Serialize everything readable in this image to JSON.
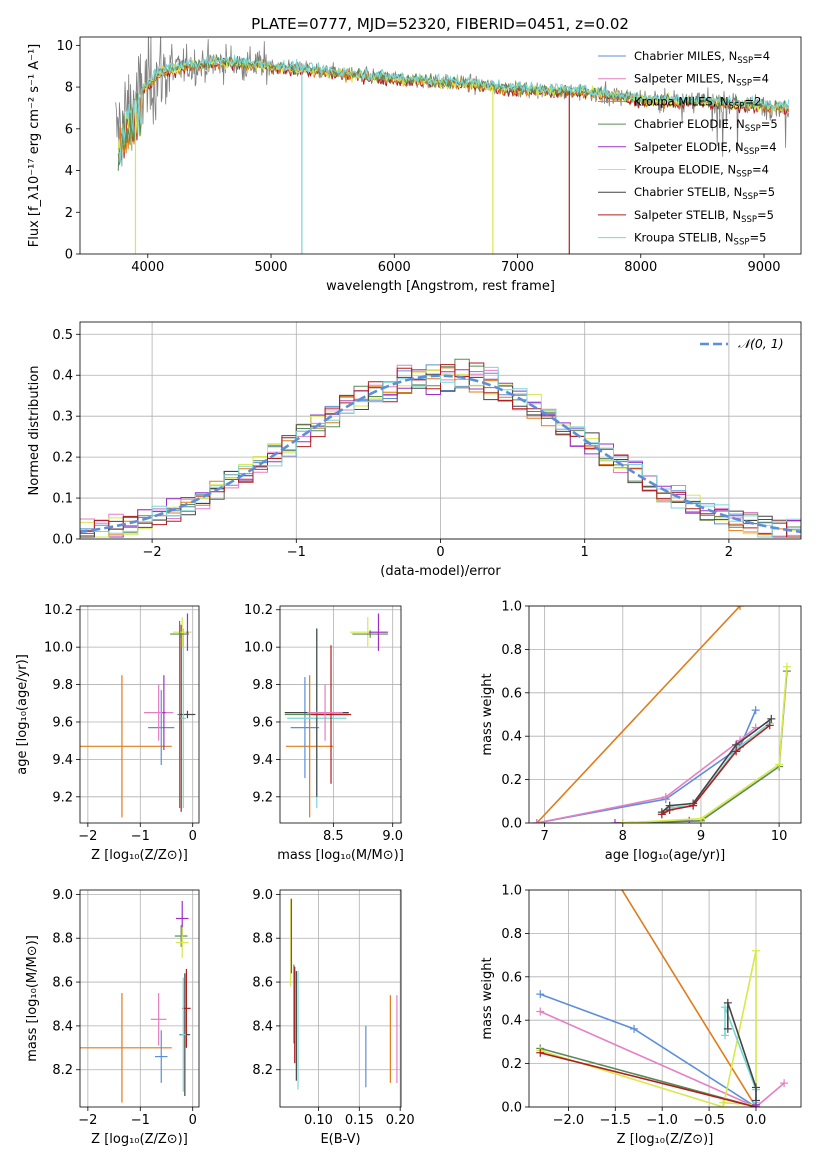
{
  "title": "PLATE=0777, MJD=52320, FIBERID=0451, z=0.02",
  "colors": {
    "Chabrier MILES": "#5b8fd9",
    "Salpeter MILES": "#e57fc4",
    "Kroupa MILES": "#e07b1a",
    "Chabrier ELODIE": "#5a8a5a",
    "Salpeter ELODIE": "#9b30c9",
    "Kroupa ELODIE": "#d7e84a",
    "Chabrier STELIB": "#444444",
    "Salpeter STELIB": "#b01e1e",
    "Kroupa STELIB": "#79d6d6"
  },
  "legend_spectrum": [
    {
      "name": "Chabrier MILES",
      "nssp": "4"
    },
    {
      "name": "Salpeter MILES",
      "nssp": "4"
    },
    {
      "name": "Kroupa MILES",
      "nssp": "2"
    },
    {
      "name": "Chabrier ELODIE",
      "nssp": "5"
    },
    {
      "name": "Salpeter ELODIE",
      "nssp": "4"
    },
    {
      "name": "Kroupa ELODIE",
      "nssp": "4"
    },
    {
      "name": "Chabrier STELIB",
      "nssp": "5"
    },
    {
      "name": "Salpeter STELIB",
      "nssp": "5"
    },
    {
      "name": "Kroupa STELIB",
      "nssp": "5"
    }
  ],
  "legend_residual": "𝒩(0, 1)",
  "chart_data": [
    {
      "id": "spectrum",
      "type": "line",
      "xlabel": "wavelength [Angstrom, rest frame]",
      "ylabel": "Flux [f_λ10⁻¹⁷ erg cm⁻² s⁻¹ A⁻¹]",
      "xlim": [
        3450,
        9300
      ],
      "ylim": [
        0,
        10.4
      ],
      "xticks": [
        4000,
        5000,
        6000,
        7000,
        8000,
        9000
      ],
      "yticks": [
        0,
        2,
        4,
        6,
        8,
        10
      ],
      "data_range": [
        3740,
        9200
      ],
      "continuum": [
        [
          3740,
          5.8
        ],
        [
          3850,
          7.0
        ],
        [
          3950,
          7.8
        ],
        [
          4100,
          8.7
        ],
        [
          4300,
          9.0
        ],
        [
          4600,
          9.2
        ],
        [
          5000,
          9.0
        ],
        [
          5500,
          8.7
        ],
        [
          6000,
          8.4
        ],
        [
          6500,
          8.2
        ],
        [
          7000,
          7.9
        ],
        [
          7500,
          7.8
        ],
        [
          8000,
          7.4
        ],
        [
          8500,
          7.3
        ],
        [
          9000,
          7.1
        ],
        [
          9200,
          7.0
        ]
      ],
      "dropouts": [
        5250,
        6800,
        7420,
        3900
      ]
    },
    {
      "id": "residuals",
      "type": "histogram",
      "xlabel": "(data-model)/error",
      "ylabel": "Normed distribution",
      "xlim": [
        -2.5,
        2.5
      ],
      "ylim": [
        0,
        0.53
      ],
      "xticks": [
        -2,
        -1,
        0,
        1,
        2
      ],
      "yticks": [
        0.0,
        0.1,
        0.2,
        0.3,
        0.4,
        0.5
      ],
      "bin_width": 0.1
    },
    {
      "id": "age-vs-Z",
      "type": "errorbar",
      "xlabel": "Z [log₁₀(Z/Z⊙)]",
      "ylabel": "age  [log₁₀(age/yr)]",
      "xlim": [
        -2.15,
        0.12
      ],
      "ylim": [
        9.06,
        10.22
      ],
      "xticks": [
        -2,
        -1,
        0
      ],
      "yticks": [
        9.2,
        9.4,
        9.6,
        9.8,
        10.0,
        10.2
      ],
      "points": [
        {
          "s": "Kroupa MILES",
          "x": -1.35,
          "xe": 0.95,
          "y": 9.47,
          "ye": 0.38
        },
        {
          "s": "Chabrier MILES",
          "x": -0.6,
          "xe": 0.25,
          "y": 9.57,
          "ye": 0.2
        },
        {
          "s": "Salpeter MILES",
          "x": -0.65,
          "xe": 0.28,
          "y": 9.65,
          "ye": 0.15
        },
        {
          "s": "Salpeter ELODIE",
          "x": -0.55,
          "xe": 0.03,
          "y": 9.65,
          "ye": 0.2
        },
        {
          "s": "Chabrier ELODIE",
          "x": -0.25,
          "xe": 0.04,
          "y": 9.64,
          "ye": 0.5
        },
        {
          "s": "Salpeter STELIB",
          "x": -0.22,
          "xe": 0.04,
          "y": 9.62,
          "ye": 0.5
        },
        {
          "s": "Chabrier STELIB",
          "x": -0.1,
          "xe": 0.15,
          "y": 9.64,
          "ye": 0.02
        },
        {
          "s": "Kroupa STELIB",
          "x": -0.18,
          "xe": 0.05,
          "y": 9.62,
          "ye": 0.48
        },
        {
          "s": "Kroupa ELODIE",
          "x": -0.2,
          "xe": 0.18,
          "y": 10.08,
          "ye": 0.08
        },
        {
          "s": "Chabrier ELODIE",
          "x": -0.25,
          "xe": 0.18,
          "y": 10.07,
          "ye": 0.02
        },
        {
          "s": "Salpeter ELODIE",
          "x": -0.1,
          "xe": 0.02,
          "y": 10.08,
          "ye": 0.1
        }
      ]
    },
    {
      "id": "age-vs-mass",
      "type": "errorbar",
      "xlabel": "mass [log₁₀(M/M⊙)]",
      "ylabel": "",
      "xlim": [
        8.05,
        9.07
      ],
      "ylim": [
        9.06,
        10.22
      ],
      "xticks": [
        8.5,
        9.0
      ],
      "yticks": [
        9.2,
        9.4,
        9.6,
        9.8,
        10.0,
        10.2
      ],
      "points": [
        {
          "s": "Kroupa MILES",
          "x": 8.3,
          "xe": 0.2,
          "y": 9.47,
          "ye": 0.38
        },
        {
          "s": "Chabrier MILES",
          "x": 8.26,
          "xe": 0.12,
          "y": 9.57,
          "ye": 0.27
        },
        {
          "s": "Kroupa STELIB",
          "x": 8.36,
          "xe": 0.25,
          "y": 9.62,
          "ye": 0.48
        },
        {
          "s": "Chabrier STELIB",
          "x": 8.36,
          "xe": 0.27,
          "y": 9.65,
          "ye": 0.45
        },
        {
          "s": "Chabrier ELODIE",
          "x": 8.36,
          "xe": 0.27,
          "y": 9.64,
          "ye": 0.02
        },
        {
          "s": "Salpeter STELIB",
          "x": 8.48,
          "xe": 0.17,
          "y": 9.64,
          "ye": 0.37
        },
        {
          "s": "Salpeter MILES",
          "x": 8.43,
          "xe": 0.15,
          "y": 9.65,
          "ye": 0.15
        },
        {
          "s": "Kroupa ELODIE",
          "x": 8.79,
          "xe": 0.15,
          "y": 10.08,
          "ye": 0.08
        },
        {
          "s": "Chabrier ELODIE",
          "x": 8.81,
          "xe": 0.15,
          "y": 10.07,
          "ye": 0.02
        },
        {
          "s": "Salpeter ELODIE",
          "x": 8.88,
          "xe": 0.08,
          "y": 10.08,
          "ye": 0.1
        }
      ]
    },
    {
      "id": "weight-vs-age",
      "type": "line",
      "xlabel": "age  [log₁₀(age/yr)]",
      "ylabel": "mass weight",
      "xlim": [
        6.8,
        10.28
      ],
      "ylim": [
        0,
        1.0
      ],
      "xticks": [
        7,
        8,
        9,
        10
      ],
      "yticks": [
        0.0,
        0.2,
        0.4,
        0.6,
        0.8,
        1.0
      ],
      "series": [
        {
          "s": "Kroupa MILES",
          "x": [
            6.9,
            9.5
          ],
          "y": [
            0.0,
            1.0
          ]
        },
        {
          "s": "Chabrier MILES",
          "x": [
            6.9,
            8.55,
            9.5,
            9.7
          ],
          "y": [
            0.0,
            0.11,
            0.35,
            0.52
          ]
        },
        {
          "s": "Salpeter MILES",
          "x": [
            6.9,
            8.55,
            9.5,
            9.7
          ],
          "y": [
            0.0,
            0.12,
            0.38,
            0.44
          ]
        },
        {
          "s": "Salpeter ELODIE",
          "x": [
            7.9,
            8.85
          ],
          "y": [
            0.0,
            0.01
          ]
        },
        {
          "s": "Kroupa STELIB",
          "x": [
            8.5,
            8.6,
            8.9,
            9.45,
            9.88
          ],
          "y": [
            0.04,
            0.07,
            0.08,
            0.34,
            0.46
          ]
        },
        {
          "s": "Chabrier STELIB",
          "x": [
            8.5,
            8.6,
            8.9,
            9.45,
            9.9
          ],
          "y": [
            0.05,
            0.08,
            0.09,
            0.36,
            0.48
          ]
        },
        {
          "s": "Salpeter STELIB",
          "x": [
            8.5,
            8.6,
            8.9,
            9.45,
            9.88
          ],
          "y": [
            0.04,
            0.06,
            0.08,
            0.33,
            0.45
          ]
        },
        {
          "s": "Chabrier ELODIE",
          "x": [
            8.0,
            9.0,
            10.0,
            10.1
          ],
          "y": [
            0.0,
            0.01,
            0.26,
            0.7
          ]
        },
        {
          "s": "Kroupa ELODIE",
          "x": [
            8.0,
            9.0,
            10.0,
            10.1
          ],
          "y": [
            0.0,
            0.02,
            0.27,
            0.72
          ]
        }
      ]
    },
    {
      "id": "mass-vs-Z",
      "type": "errorbar",
      "xlabel": "Z [log₁₀(Z/Z⊙)]",
      "ylabel": "mass [log₁₀(M/M⊙)]",
      "xlim": [
        -2.15,
        0.12
      ],
      "ylim": [
        8.03,
        9.02
      ],
      "xticks": [
        -2,
        -1,
        0
      ],
      "yticks": [
        8.2,
        8.4,
        8.6,
        8.8,
        9.0
      ],
      "points": [
        {
          "s": "Kroupa MILES",
          "x": -1.35,
          "xe": 0.95,
          "y": 8.3,
          "ye": 0.25
        },
        {
          "s": "Chabrier MILES",
          "x": -0.6,
          "xe": 0.12,
          "y": 8.26,
          "ye": 0.12
        },
        {
          "s": "Salpeter MILES",
          "x": -0.65,
          "xe": 0.15,
          "y": 8.43,
          "ye": 0.12
        },
        {
          "s": "Salpeter ELODIE",
          "x": -0.2,
          "xe": 0.12,
          "y": 8.89,
          "ye": 0.08
        },
        {
          "s": "Chabrier ELODIE",
          "x": -0.22,
          "xe": 0.12,
          "y": 8.81,
          "ye": 0.05
        },
        {
          "s": "Kroupa ELODIE",
          "x": -0.2,
          "xe": 0.12,
          "y": 8.78,
          "ye": 0.07
        },
        {
          "s": "Salpeter STELIB",
          "x": -0.12,
          "xe": 0.08,
          "y": 8.48,
          "ye": 0.18
        },
        {
          "s": "Chabrier STELIB",
          "x": -0.15,
          "xe": 0.1,
          "y": 8.36,
          "ye": 0.28
        },
        {
          "s": "Kroupa STELIB",
          "x": -0.18,
          "xe": 0.05,
          "y": 8.36,
          "ye": 0.26
        }
      ]
    },
    {
      "id": "mass-vs-EBV",
      "type": "errorbar",
      "xlabel": "E(B-V)",
      "ylabel": "",
      "xlim": [
        0.053,
        0.201
      ],
      "ylim": [
        8.03,
        9.02
      ],
      "xticks": [
        0.1,
        0.15,
        0.2
      ],
      "yticks": [
        8.2,
        8.4,
        8.6,
        8.8,
        9.0
      ],
      "points": [
        {
          "s": "Kroupa ELODIE",
          "x": 0.066,
          "xe": 0,
          "y": 8.78,
          "ye": 0.2
        },
        {
          "s": "Salpeter ELODIE",
          "x": 0.067,
          "xe": 0,
          "y": 8.81,
          "ye": 0.17
        },
        {
          "s": "Chabrier ELODIE",
          "x": 0.07,
          "xe": 0,
          "y": 8.5,
          "ye": 0.18
        },
        {
          "s": "Salpeter STELIB",
          "x": 0.071,
          "xe": 0,
          "y": 8.45,
          "ye": 0.22
        },
        {
          "s": "Chabrier STELIB",
          "x": 0.073,
          "xe": 0,
          "y": 8.4,
          "ye": 0.25
        },
        {
          "s": "Kroupa STELIB",
          "x": 0.075,
          "xe": 0,
          "y": 8.38,
          "ye": 0.27
        },
        {
          "s": "Chabrier MILES",
          "x": 0.158,
          "xe": 0,
          "y": 8.26,
          "ye": 0.14
        },
        {
          "s": "Kroupa MILES",
          "x": 0.188,
          "xe": 0,
          "y": 8.34,
          "ye": 0.2
        },
        {
          "s": "Salpeter MILES",
          "x": 0.196,
          "xe": 0,
          "y": 8.34,
          "ye": 0.2
        }
      ]
    },
    {
      "id": "weight-vs-Z",
      "type": "line",
      "xlabel": "Z [log₁₀(Z/Z⊙)]",
      "ylabel": "mass weight",
      "xlim": [
        -2.42,
        0.48
      ],
      "ylim": [
        0,
        1.0
      ],
      "xticks": [
        -2.0,
        -1.5,
        -1.0,
        -0.5,
        0.0
      ],
      "yticks": [
        0.0,
        0.2,
        0.4,
        0.6,
        0.8,
        1.0
      ],
      "series": [
        {
          "s": "Kroupa MILES",
          "x": [
            -1.5,
            0.0
          ],
          "y": [
            1.05,
            0.0
          ]
        },
        {
          "s": "Chabrier MILES",
          "x": [
            -2.3,
            -1.3,
            0.0
          ],
          "y": [
            0.52,
            0.36,
            0.0
          ]
        },
        {
          "s": "Salpeter MILES",
          "x": [
            -2.3,
            0.0,
            0.3
          ],
          "y": [
            0.44,
            0.0,
            0.11
          ]
        },
        {
          "s": "Chabrier ELODIE",
          "x": [
            -2.3,
            0.0
          ],
          "y": [
            0.27,
            0.0
          ]
        },
        {
          "s": "Kroupa ELODIE",
          "x": [
            -2.3,
            -0.35,
            0.0,
            0.0,
            -0.35
          ],
          "y": [
            0.26,
            0.0,
            0.72,
            0.01,
            0.02
          ]
        },
        {
          "s": "Salpeter STELIB",
          "x": [
            -2.3,
            0.0
          ],
          "y": [
            0.25,
            0.0
          ]
        },
        {
          "s": "Kroupa STELIB",
          "x": [
            -0.33,
            -0.33,
            0.0,
            0.0
          ],
          "y": [
            0.33,
            0.46,
            0.08,
            0.02
          ]
        },
        {
          "s": "Chabrier STELIB",
          "x": [
            -0.3,
            -0.3,
            0.0,
            0.0
          ],
          "y": [
            0.36,
            0.48,
            0.09,
            0.03
          ]
        },
        {
          "s": "Salpeter ELODIE",
          "x": [
            0.0,
            0.0
          ],
          "y": [
            0.0,
            0.01
          ]
        }
      ]
    }
  ]
}
